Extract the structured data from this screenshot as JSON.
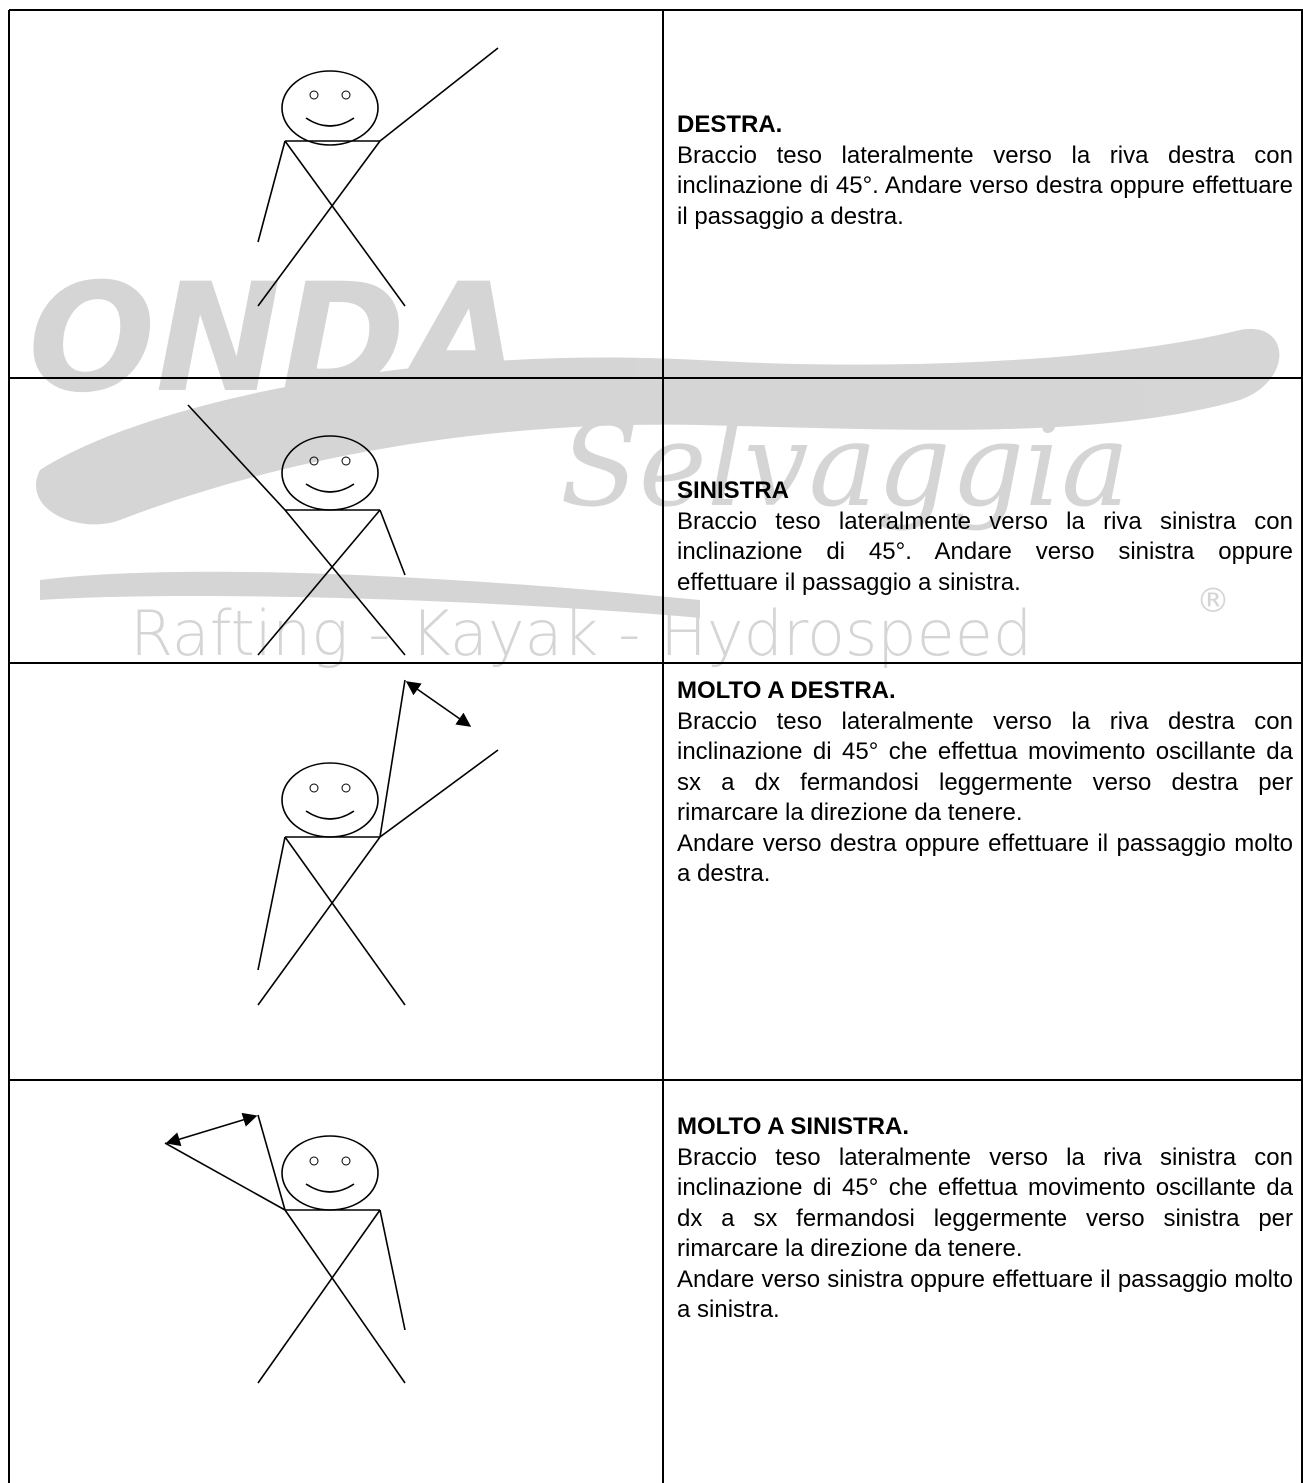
{
  "watermark": {
    "logo": "ONDA",
    "script": "Selvaggia",
    "tagline": "Rafting - Kayak - Hydrospeed",
    "mark": "®"
  },
  "table": {
    "rows": [
      {
        "title": "DESTRA.",
        "paragraphs": [
          "Braccio teso lateralmente verso la riva destra con inclinazione di 45°. Andare verso destra oppure effettuare il passaggio  a destra."
        ]
      },
      {
        "title": "SINISTRA",
        "paragraphs": [
          "Braccio teso lateralmente verso la riva sinistra con inclinazione di 45°. Andare verso sinistra oppure effettuare il passaggio a sinistra."
        ]
      },
      {
        "title": "MOLTO A DESTRA.",
        "paragraphs": [
          "Braccio teso lateralmente verso la riva destra con inclinazione di 45° che effettua movimento oscillante da sx a dx fermandosi leggermente verso destra per rimarcare la direzione da tenere.",
          "Andare verso destra oppure effettuare il passaggio  molto a destra."
        ]
      },
      {
        "title": "MOLTO A SINISTRA.",
        "paragraphs": [
          "Braccio teso lateralmente verso la riva sinistra con inclinazione di 45° che effettua movimento oscillante da dx a sx fermandosi leggermente verso sinistra per rimarcare la direzione da tenere.",
          "Andare verso sinistra oppure effettuare il passaggio  molto a sinistra."
        ]
      }
    ]
  }
}
